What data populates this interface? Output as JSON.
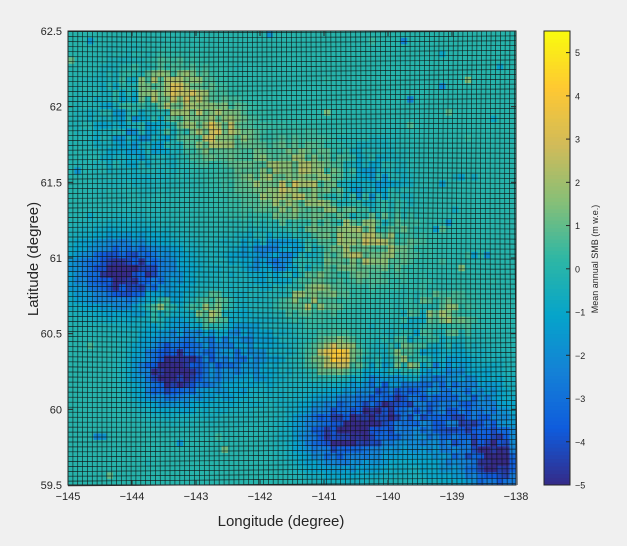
{
  "chart_data": {
    "type": "heatmap",
    "title": "",
    "xlabel": "Longitude (degree)",
    "ylabel": "Latitude (degree)",
    "xlim": [
      -145,
      -138
    ],
    "ylim": [
      59.5,
      62.5
    ],
    "x_ticks": [
      -145,
      -144,
      -143,
      -142,
      -141,
      -140,
      -139,
      -138
    ],
    "x_tick_labels": [
      "−145",
      "−144",
      "−143",
      "−142",
      "−141",
      "−140",
      "−139",
      "−138"
    ],
    "y_ticks": [
      59.5,
      60,
      60.5,
      61,
      61.5,
      62,
      62.5
    ],
    "y_tick_labels": [
      "59.5",
      "60",
      "60.5",
      "61",
      "61.5",
      "62",
      "62.5"
    ],
    "colorbar": {
      "label": "Mean annual SMB (m w.e.)",
      "range": [
        -5,
        5.5
      ],
      "ticks": [
        -5,
        -4,
        -3,
        -2,
        -1,
        0,
        1,
        2,
        3,
        4,
        5
      ],
      "tick_labels": [
        "−5",
        "−4",
        "−3",
        "−2",
        "−1",
        "0",
        "1",
        "2",
        "3",
        "4",
        "5"
      ],
      "colormap": [
        "#352a87",
        "#0f5cdd",
        "#1481d6",
        "#06a4ca",
        "#2eb7a4",
        "#87bf77",
        "#d1bb59",
        "#fec832",
        "#f9fb0e"
      ]
    },
    "background_value": 0,
    "grid_size": [
      70,
      70
    ],
    "field_features": [
      {
        "lon": -144.1,
        "lat": 60.9,
        "sigma_lon": 0.55,
        "sigma_lat": 0.16,
        "value": -5
      },
      {
        "lon": -143.4,
        "lat": 60.25,
        "sigma_lon": 0.32,
        "sigma_lat": 0.14,
        "value": -5
      },
      {
        "lon": -142.6,
        "lat": 60.35,
        "sigma_lon": 0.6,
        "sigma_lat": 0.2,
        "value": -2.5
      },
      {
        "lon": -140.7,
        "lat": 59.85,
        "sigma_lon": 0.45,
        "sigma_lat": 0.16,
        "value": -5
      },
      {
        "lon": -139.9,
        "lat": 60.05,
        "sigma_lon": 0.4,
        "sigma_lat": 0.2,
        "value": -3.5
      },
      {
        "lon": -138.8,
        "lat": 59.9,
        "sigma_lon": 0.45,
        "sigma_lat": 0.25,
        "value": -3.5
      },
      {
        "lon": -138.3,
        "lat": 59.65,
        "sigma_lon": 0.25,
        "sigma_lat": 0.15,
        "value": -4.5
      },
      {
        "lon": -139.4,
        "lat": 60.4,
        "sigma_lon": 0.3,
        "sigma_lat": 0.2,
        "value": -1.5
      },
      {
        "lon": -141.8,
        "lat": 61.0,
        "sigma_lon": 0.45,
        "sigma_lat": 0.12,
        "value": -2
      },
      {
        "lon": -143.9,
        "lat": 61.9,
        "sigma_lon": 0.5,
        "sigma_lat": 0.25,
        "value": -1.2
      },
      {
        "lon": -140.3,
        "lat": 61.45,
        "sigma_lon": 0.4,
        "sigma_lat": 0.2,
        "value": -1.2
      },
      {
        "lon": -143.4,
        "lat": 62.1,
        "sigma_lon": 0.4,
        "sigma_lat": 0.12,
        "value": 2.8
      },
      {
        "lon": -142.7,
        "lat": 61.85,
        "sigma_lon": 0.35,
        "sigma_lat": 0.12,
        "value": 2.2
      },
      {
        "lon": -141.5,
        "lat": 61.5,
        "sigma_lon": 0.55,
        "sigma_lat": 0.18,
        "value": 2.0
      },
      {
        "lon": -140.4,
        "lat": 61.1,
        "sigma_lon": 0.5,
        "sigma_lat": 0.16,
        "value": 2.0
      },
      {
        "lon": -140.8,
        "lat": 60.35,
        "sigma_lon": 0.25,
        "sigma_lat": 0.08,
        "value": 3.6
      },
      {
        "lon": -139.7,
        "lat": 60.3,
        "sigma_lon": 0.25,
        "sigma_lat": 0.1,
        "value": 3.2
      },
      {
        "lon": -142.8,
        "lat": 60.65,
        "sigma_lon": 0.2,
        "sigma_lat": 0.08,
        "value": 2.5
      },
      {
        "lon": -143.6,
        "lat": 60.7,
        "sigma_lon": 0.15,
        "sigma_lat": 0.07,
        "value": 2.2
      },
      {
        "lon": -141.2,
        "lat": 60.75,
        "sigma_lon": 0.3,
        "sigma_lat": 0.1,
        "value": 1.8
      },
      {
        "lon": -139.2,
        "lat": 60.6,
        "sigma_lon": 0.3,
        "sigma_lat": 0.12,
        "value": 1.8
      }
    ]
  }
}
